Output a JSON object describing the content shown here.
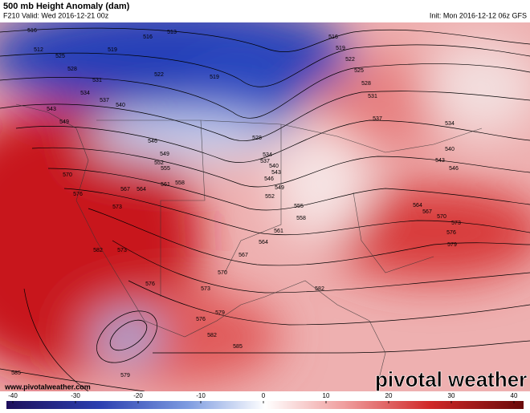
{
  "header": {
    "title": "500 mb Height Anomaly (dam)",
    "valid": "F210 Valid: Wed 2016-12-21 00z",
    "init": "Init: Mon 2016-12-12 06z GFS"
  },
  "watermark": "pivotal weather",
  "website": "www.pivotalweather.com",
  "contour_labels": [
    516,
    516,
    513,
    519,
    512,
    525,
    528,
    522,
    519,
    516,
    519,
    522,
    525,
    528,
    531,
    537,
    534,
    540,
    543,
    546,
    531,
    534,
    537,
    540,
    543,
    549,
    546,
    549,
    552,
    555,
    558,
    561,
    564,
    567,
    570,
    576,
    573,
    582,
    573,
    576,
    573,
    570,
    567,
    564,
    561,
    558,
    555,
    552,
    549,
    546,
    543,
    540,
    537,
    534,
    528,
    564,
    567,
    570,
    573,
    576,
    579,
    582,
    579,
    582,
    585,
    576,
    585,
    579
  ],
  "colorbar": {
    "range": [
      -40,
      40
    ],
    "ticks": [
      -40,
      -30,
      -20,
      -10,
      0,
      10,
      20,
      30,
      40
    ]
  }
}
